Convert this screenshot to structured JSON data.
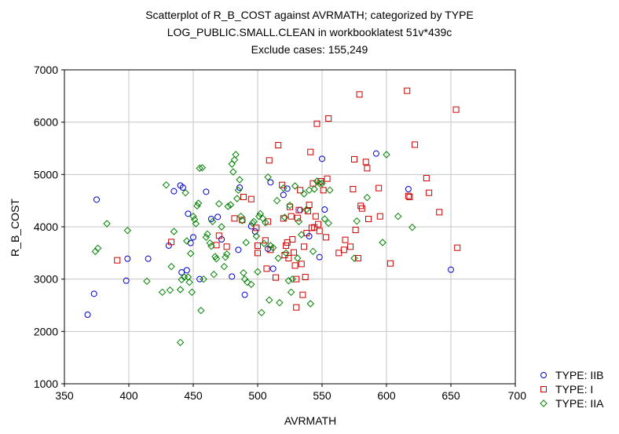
{
  "chart_data": {
    "type": "scatter",
    "title_lines": [
      "Scatterplot of R_B_COST against AVRMATH; categorized by TYPE",
      "LOG_PUBLIC.SMALL.CLEAN in workbooklatest 51v*439c",
      "Exclude cases: 155,249"
    ],
    "xlabel": "AVRMATH",
    "ylabel": "R_B_COST",
    "xlim": [
      350,
      700
    ],
    "ylim": [
      1000,
      7000
    ],
    "xticks": [
      350,
      400,
      450,
      500,
      550,
      600,
      650,
      700
    ],
    "yticks": [
      1000,
      2000,
      3000,
      4000,
      5000,
      6000,
      7000
    ],
    "grid": true,
    "legend_position": "bottom-right",
    "series": [
      {
        "name": "TYPE: IIB",
        "color": "#0000cc",
        "marker": "circle",
        "points": [
          [
            368,
            2320
          ],
          [
            373,
            2720
          ],
          [
            375,
            4520
          ],
          [
            398,
            2970
          ],
          [
            399,
            3390
          ],
          [
            415,
            3390
          ],
          [
            431,
            3640
          ],
          [
            435,
            4680
          ],
          [
            440,
            4790
          ],
          [
            442,
            4750
          ],
          [
            441,
            3130
          ],
          [
            445,
            3170
          ],
          [
            446,
            4250
          ],
          [
            448,
            3690
          ],
          [
            450,
            3800
          ],
          [
            455,
            3000
          ],
          [
            460,
            4670
          ],
          [
            464,
            4150
          ],
          [
            469,
            4190
          ],
          [
            472,
            3760
          ],
          [
            480,
            3050
          ],
          [
            485,
            3560
          ],
          [
            486,
            4750
          ],
          [
            490,
            2700
          ],
          [
            495,
            4010
          ],
          [
            498,
            3910
          ],
          [
            508,
            3580
          ],
          [
            510,
            4850
          ],
          [
            512,
            3200
          ],
          [
            520,
            4610
          ],
          [
            523,
            4730
          ],
          [
            533,
            4320
          ],
          [
            540,
            3820
          ],
          [
            548,
            3420
          ],
          [
            550,
            5300
          ],
          [
            552,
            4330
          ],
          [
            592,
            5400
          ],
          [
            617,
            4720
          ],
          [
            650,
            3180
          ]
        ]
      },
      {
        "name": "TYPE: I",
        "color": "#cc0000",
        "marker": "square",
        "points": [
          [
            391,
            3360
          ],
          [
            433,
            3710
          ],
          [
            468,
            3650
          ],
          [
            470,
            3830
          ],
          [
            476,
            3620
          ],
          [
            482,
            4160
          ],
          [
            488,
            4130
          ],
          [
            489,
            4570
          ],
          [
            495,
            4530
          ],
          [
            499,
            3980
          ],
          [
            500,
            3640
          ],
          [
            500,
            3500
          ],
          [
            506,
            3740
          ],
          [
            507,
            3200
          ],
          [
            508,
            4100
          ],
          [
            509,
            5270
          ],
          [
            510,
            3560
          ],
          [
            514,
            3030
          ],
          [
            516,
            5560
          ],
          [
            519,
            4800
          ],
          [
            520,
            4160
          ],
          [
            521,
            3460
          ],
          [
            522,
            3640
          ],
          [
            523,
            3700
          ],
          [
            524,
            3400
          ],
          [
            525,
            4380
          ],
          [
            526,
            4200
          ],
          [
            527,
            3760
          ],
          [
            528,
            3510
          ],
          [
            529,
            3260
          ],
          [
            530,
            3000
          ],
          [
            530,
            2460
          ],
          [
            531,
            4170
          ],
          [
            532,
            4320
          ],
          [
            533,
            4700
          ],
          [
            534,
            3290
          ],
          [
            535,
            2700
          ],
          [
            536,
            3620
          ],
          [
            537,
            3040
          ],
          [
            538,
            3880
          ],
          [
            539,
            4300
          ],
          [
            540,
            4420
          ],
          [
            541,
            5430
          ],
          [
            542,
            3980
          ],
          [
            543,
            4830
          ],
          [
            544,
            3990
          ],
          [
            545,
            4200
          ],
          [
            546,
            5970
          ],
          [
            547,
            4050
          ],
          [
            548,
            3920
          ],
          [
            549,
            4870
          ],
          [
            551,
            4700
          ],
          [
            553,
            3800
          ],
          [
            554,
            4920
          ],
          [
            555,
            6070
          ],
          [
            563,
            3500
          ],
          [
            567,
            3560
          ],
          [
            568,
            3750
          ],
          [
            572,
            3620
          ],
          [
            574,
            4720
          ],
          [
            575,
            5290
          ],
          [
            576,
            3940
          ],
          [
            578,
            3400
          ],
          [
            579,
            6530
          ],
          [
            580,
            4400
          ],
          [
            581,
            4350
          ],
          [
            584,
            5240
          ],
          [
            585,
            5120
          ],
          [
            586,
            4150
          ],
          [
            594,
            4740
          ],
          [
            595,
            4200
          ],
          [
            603,
            3300
          ],
          [
            616,
            6600
          ],
          [
            617,
            4590
          ],
          [
            618,
            4570
          ],
          [
            622,
            5570
          ],
          [
            631,
            4930
          ],
          [
            633,
            4650
          ],
          [
            641,
            4280
          ],
          [
            654,
            6240
          ],
          [
            655,
            3600
          ]
        ]
      },
      {
        "name": "TYPE: IIA",
        "color": "#008000",
        "marker": "diamond",
        "points": [
          [
            374,
            3530
          ],
          [
            376,
            3590
          ],
          [
            383,
            4060
          ],
          [
            399,
            3930
          ],
          [
            414,
            2960
          ],
          [
            426,
            2750
          ],
          [
            429,
            4800
          ],
          [
            432,
            2790
          ],
          [
            433,
            3240
          ],
          [
            435,
            3910
          ],
          [
            440,
            2800
          ],
          [
            440,
            1790
          ],
          [
            441,
            2990
          ],
          [
            443,
            3040
          ],
          [
            444,
            4650
          ],
          [
            445,
            3730
          ],
          [
            446,
            3040
          ],
          [
            447,
            2940
          ],
          [
            448,
            3490
          ],
          [
            449,
            2750
          ],
          [
            450,
            4200
          ],
          [
            451,
            4140
          ],
          [
            452,
            4060
          ],
          [
            453,
            4400
          ],
          [
            454,
            4450
          ],
          [
            455,
            5120
          ],
          [
            456,
            2400
          ],
          [
            457,
            5130
          ],
          [
            458,
            3000
          ],
          [
            460,
            3800
          ],
          [
            461,
            3860
          ],
          [
            463,
            3690
          ],
          [
            464,
            3630
          ],
          [
            465,
            4100
          ],
          [
            466,
            3090
          ],
          [
            467,
            3430
          ],
          [
            468,
            3390
          ],
          [
            470,
            4440
          ],
          [
            472,
            4000
          ],
          [
            474,
            3240
          ],
          [
            475,
            3420
          ],
          [
            476,
            3480
          ],
          [
            477,
            4390
          ],
          [
            479,
            4420
          ],
          [
            480,
            5200
          ],
          [
            481,
            5050
          ],
          [
            482,
            5280
          ],
          [
            483,
            5380
          ],
          [
            484,
            4540
          ],
          [
            485,
            4700
          ],
          [
            486,
            4900
          ],
          [
            487,
            4200
          ],
          [
            488,
            4120
          ],
          [
            489,
            3120
          ],
          [
            490,
            3000
          ],
          [
            491,
            3700
          ],
          [
            492,
            2940
          ],
          [
            495,
            2900
          ],
          [
            496,
            4070
          ],
          [
            497,
            4100
          ],
          [
            499,
            3820
          ],
          [
            500,
            3140
          ],
          [
            501,
            4200
          ],
          [
            502,
            4250
          ],
          [
            503,
            2360
          ],
          [
            504,
            4160
          ],
          [
            505,
            3680
          ],
          [
            506,
            4080
          ],
          [
            508,
            4950
          ],
          [
            509,
            2600
          ],
          [
            510,
            3640
          ],
          [
            512,
            3600
          ],
          [
            515,
            4500
          ],
          [
            516,
            3400
          ],
          [
            517,
            2550
          ],
          [
            520,
            4740
          ],
          [
            521,
            4180
          ],
          [
            522,
            3500
          ],
          [
            524,
            2970
          ],
          [
            525,
            4410
          ],
          [
            526,
            2750
          ],
          [
            527,
            3000
          ],
          [
            529,
            4780
          ],
          [
            531,
            3400
          ],
          [
            532,
            4100
          ],
          [
            534,
            3850
          ],
          [
            536,
            4630
          ],
          [
            538,
            4330
          ],
          [
            540,
            4700
          ],
          [
            541,
            2530
          ],
          [
            543,
            3530
          ],
          [
            544,
            4720
          ],
          [
            546,
            4870
          ],
          [
            548,
            4830
          ],
          [
            550,
            4830
          ],
          [
            552,
            4150
          ],
          [
            555,
            4070
          ],
          [
            556,
            4700
          ],
          [
            575,
            3400
          ],
          [
            577,
            4110
          ],
          [
            585,
            4560
          ],
          [
            597,
            3700
          ],
          [
            600,
            5380
          ],
          [
            609,
            4200
          ],
          [
            620,
            3990
          ]
        ]
      }
    ]
  }
}
